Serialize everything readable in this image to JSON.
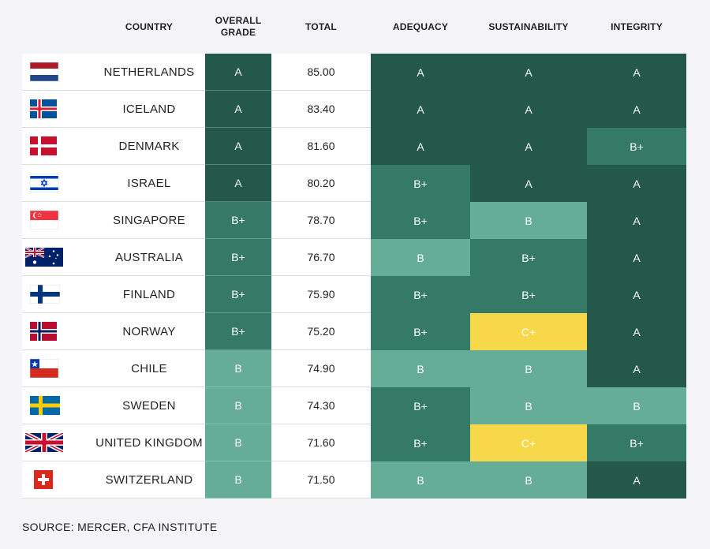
{
  "headers": {
    "country": "COUNTRY",
    "overall_line1": "OVERALL",
    "overall_line2": "GRADE",
    "total": "TOTAL",
    "adequacy": "ADEQUACY",
    "sustainability": "SUSTAINABILITY",
    "integrity": "INTEGRITY"
  },
  "colors": {
    "A": "#24584a",
    "B+": "#347a66",
    "B": "#66ad98",
    "C+": "#f7d84a"
  },
  "chart_data": {
    "type": "table",
    "columns": [
      "COUNTRY",
      "OVERALL GRADE",
      "TOTAL",
      "ADEQUACY",
      "SUSTAINABILITY",
      "INTEGRITY"
    ],
    "rows": [
      {
        "flag": "netherlands-flag",
        "country": "NETHERLANDS",
        "overall": "A",
        "total": "85.00",
        "adequacy": "A",
        "sustainability": "A",
        "integrity": "A"
      },
      {
        "flag": "iceland-flag",
        "country": "ICELAND",
        "overall": "A",
        "total": "83.40",
        "adequacy": "A",
        "sustainability": "A",
        "integrity": "A"
      },
      {
        "flag": "denmark-flag",
        "country": "DENMARK",
        "overall": "A",
        "total": "81.60",
        "adequacy": "A",
        "sustainability": "A",
        "integrity": "B+"
      },
      {
        "flag": "israel-flag",
        "country": "ISRAEL",
        "overall": "A",
        "total": "80.20",
        "adequacy": "B+",
        "sustainability": "A",
        "integrity": "A"
      },
      {
        "flag": "singapore-flag",
        "country": "SINGAPORE",
        "overall": "B+",
        "total": "78.70",
        "adequacy": "B+",
        "sustainability": "B",
        "integrity": "A"
      },
      {
        "flag": "australia-flag",
        "country": "AUSTRALIA",
        "overall": "B+",
        "total": "76.70",
        "adequacy": "B",
        "sustainability": "B+",
        "integrity": "A"
      },
      {
        "flag": "finland-flag",
        "country": "FINLAND",
        "overall": "B+",
        "total": "75.90",
        "adequacy": "B+",
        "sustainability": "B+",
        "integrity": "A"
      },
      {
        "flag": "norway-flag",
        "country": "NORWAY",
        "overall": "B+",
        "total": "75.20",
        "adequacy": "B+",
        "sustainability": "C+",
        "integrity": "A"
      },
      {
        "flag": "chile-flag",
        "country": "CHILE",
        "overall": "B",
        "total": "74.90",
        "adequacy": "B",
        "sustainability": "B",
        "integrity": "A"
      },
      {
        "flag": "sweden-flag",
        "country": "SWEDEN",
        "overall": "B",
        "total": "74.30",
        "adequacy": "B+",
        "sustainability": "B",
        "integrity": "B"
      },
      {
        "flag": "uk-flag",
        "country": "UNITED KINGDOM",
        "overall": "B",
        "total": "71.60",
        "adequacy": "B+",
        "sustainability": "C+",
        "integrity": "B+"
      },
      {
        "flag": "switzerland-flag",
        "country": "SWITZERLAND",
        "overall": "B",
        "total": "71.50",
        "adequacy": "B",
        "sustainability": "B",
        "integrity": "A"
      }
    ]
  },
  "source": "SOURCE: MERCER, CFA INSTITUTE"
}
